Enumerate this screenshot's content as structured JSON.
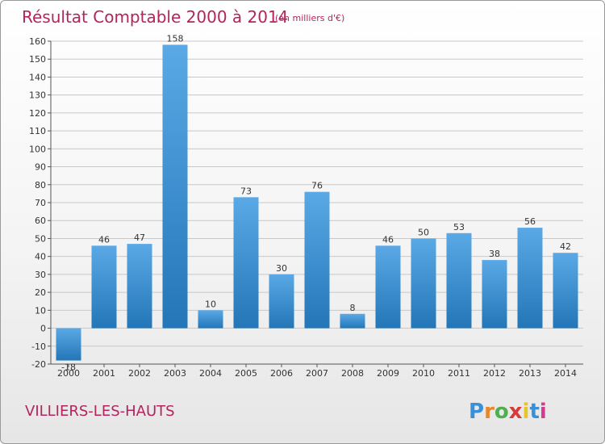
{
  "chart_data": {
    "type": "bar",
    "title": "Résultat Comptable 2000 à 2014",
    "subtitle": "(en milliers d'€)",
    "categories": [
      "2000",
      "2001",
      "2002",
      "2003",
      "2004",
      "2005",
      "2006",
      "2007",
      "2008",
      "2009",
      "2010",
      "2011",
      "2012",
      "2013",
      "2014"
    ],
    "values": [
      -18,
      46,
      47,
      158,
      10,
      73,
      30,
      76,
      8,
      46,
      50,
      53,
      38,
      56,
      42
    ],
    "ylim": [
      -20,
      160
    ],
    "yticks": [
      -20,
      -10,
      0,
      10,
      20,
      30,
      40,
      50,
      60,
      70,
      80,
      90,
      100,
      110,
      120,
      130,
      140,
      150,
      160
    ],
    "grid": true,
    "xlabel": "",
    "ylabel": ""
  },
  "place": "VILLIERS-LES-HAUTS",
  "logo": {
    "letters": [
      "P",
      "r",
      "o",
      "x",
      "i",
      "t",
      "i"
    ],
    "colors": [
      "#3a8fd9",
      "#e8862a",
      "#4caf50",
      "#d63a3a",
      "#e8c42a",
      "#3a8fd9",
      "#d63a8f"
    ]
  },
  "colors": {
    "bar_light": "#5aa9e6",
    "bar_dark": "#2376b7",
    "title": "#b3245c",
    "grid": "#c8c8c8"
  }
}
